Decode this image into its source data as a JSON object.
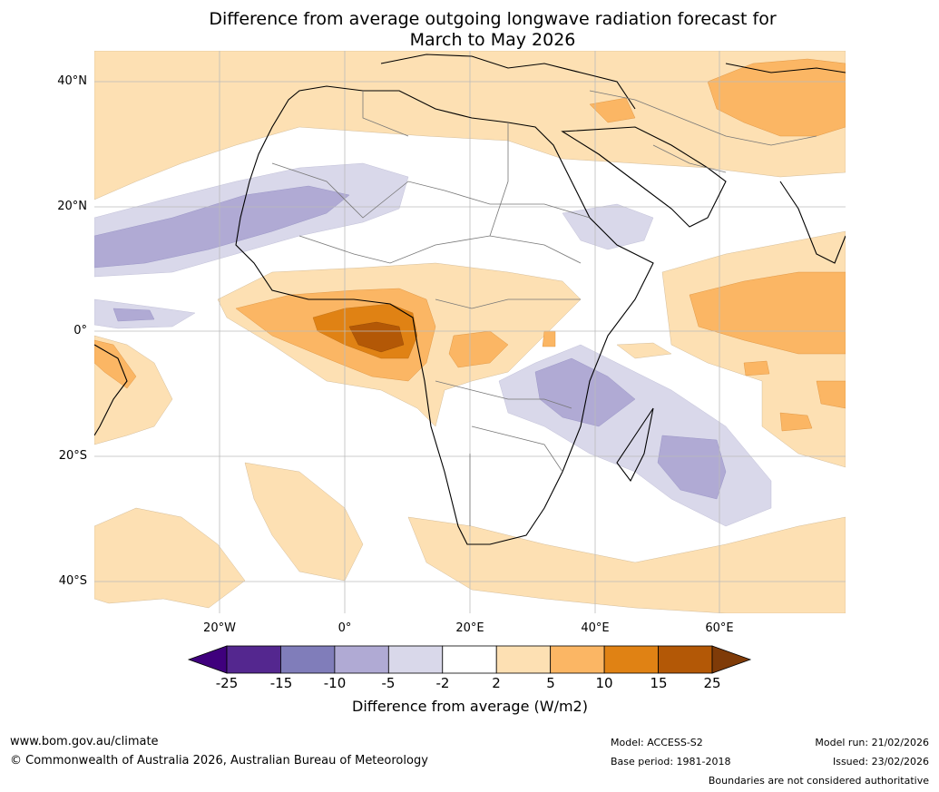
{
  "title_line1": "Difference from average outgoing longwave radiation forecast for",
  "title_line2": "March to May 2026",
  "lat_labels": [
    "40°N",
    "20°N",
    "0°",
    "20°S",
    "40°S"
  ],
  "lon_labels": [
    "20°W",
    "0°",
    "20°E",
    "40°E",
    "60°E"
  ],
  "colorbar": {
    "ticks": [
      "-25",
      "-15",
      "-10",
      "-5",
      "-2",
      "2",
      "5",
      "10",
      "15",
      "25"
    ],
    "colors": [
      "#3f007d",
      "#54278f",
      "#807dba",
      "#b0aad4",
      "#d9d8ea",
      "#ffffff",
      "#fde0b3",
      "#fbb664",
      "#e08214",
      "#b35806",
      "#7f3b08"
    ],
    "label": "Difference from average (W/m2)"
  },
  "footer": {
    "url": "www.bom.gov.au/climate",
    "copyright": "© Commonwealth of Australia 2026, Australian Bureau of Meteorology",
    "model": "Model: ACCESS-S2",
    "base_period": "Base period: 1981-2018",
    "model_run": "Model run: 21/02/2026",
    "issued": "Issued: 23/02/2026",
    "disclaimer": "Boundaries are not considered authoritative"
  }
}
